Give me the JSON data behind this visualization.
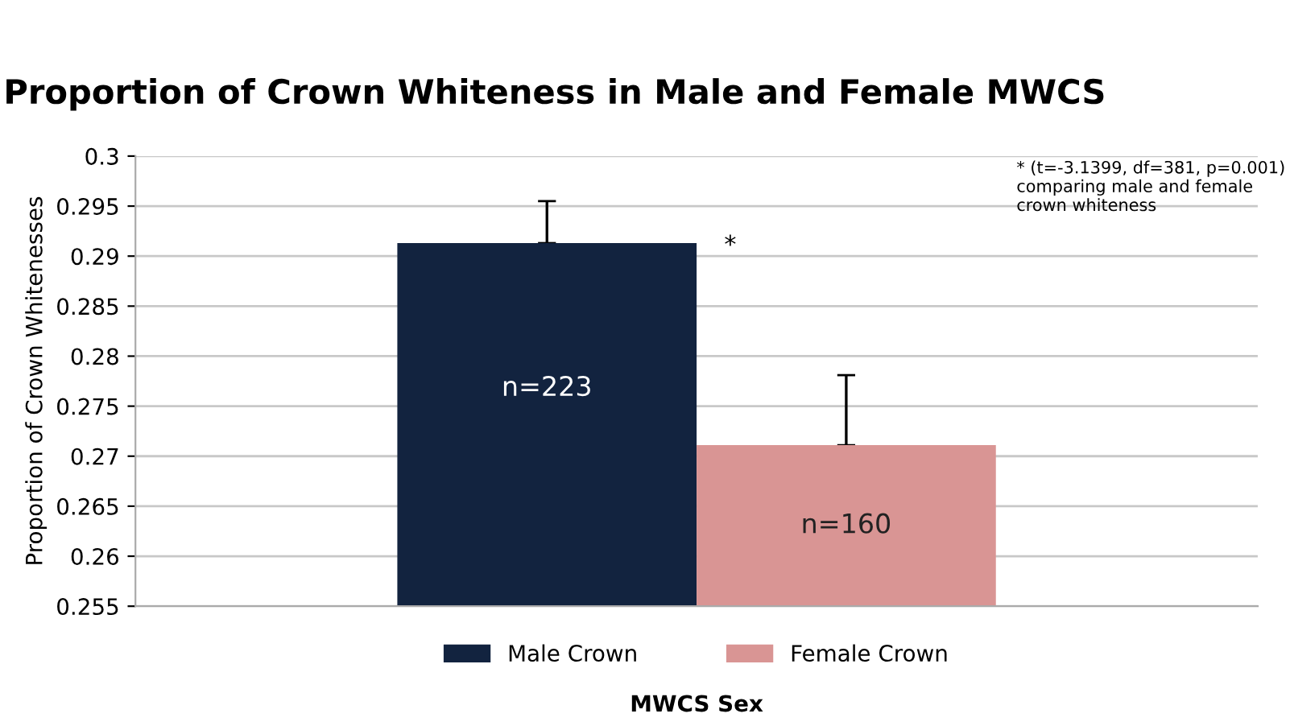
{
  "chart_data": {
    "type": "bar",
    "title": "Proportion of Crown Whiteness in Male and Female MWCS",
    "xlabel": "MWCS Sex",
    "ylabel": "Proportion of Crown Whitenesses",
    "categories": [
      null
    ],
    "series": [
      {
        "name": "Male Crown",
        "color": "#12233f",
        "values": [
          0.2913
        ],
        "errors": [
          [
            0.2913,
            0.2955
          ]
        ]
      },
      {
        "name": "Female Crown",
        "color": "#d99594",
        "values": [
          0.2711
        ],
        "errors": [
          [
            0.2711,
            0.2781
          ]
        ]
      }
    ],
    "ylim": [
      0.255,
      0.3
    ],
    "yticks": [
      0.255,
      0.26,
      0.265,
      0.27,
      0.275,
      0.28,
      0.285,
      0.29,
      0.295,
      0.3
    ],
    "grid": "y",
    "legend": "bottom",
    "annotations": [
      "*",
      "* (t=-3.1399, df=381, p=0.001)\ncomparing male and female\ncrown whiteness",
      "n=223",
      "n=160"
    ]
  }
}
